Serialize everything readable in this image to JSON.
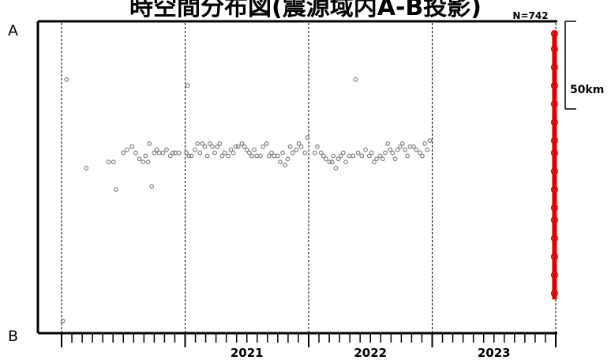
{
  "title": "時空間分布図(震源域内A-B投影)",
  "count_label": "N=742",
  "end_a": "A",
  "end_b": "B",
  "scale_label": "50km",
  "chart_data": {
    "type": "scatter",
    "title": "時空間分布図(震源域内A-B投影)",
    "xlabel": "",
    "ylabel": "",
    "x_ticks": [
      "2021",
      "2022",
      "2023"
    ],
    "xlim": [
      2020.0,
      2024.0
    ],
    "ylim": [
      0,
      1
    ],
    "y_axis_meaning": "position along A-B projection (1 = A, 0 = B)",
    "grid": "dashed vertical lines at year boundaries",
    "series": [
      {
        "color": "#808080",
        "points": [
          [
            2020.01,
            0.03
          ],
          [
            2020.04,
            0.82
          ],
          [
            2020.2,
            0.53
          ],
          [
            2020.38,
            0.55
          ],
          [
            2020.42,
            0.55
          ],
          [
            2020.44,
            0.46
          ],
          [
            2020.5,
            0.58
          ],
          [
            2020.53,
            0.59
          ],
          [
            2020.57,
            0.6
          ],
          [
            2020.6,
            0.58
          ],
          [
            2020.63,
            0.56
          ],
          [
            2020.66,
            0.55
          ],
          [
            2020.68,
            0.57
          ],
          [
            2020.7,
            0.55
          ],
          [
            2020.71,
            0.61
          ],
          [
            2020.73,
            0.47
          ],
          [
            2020.75,
            0.58
          ],
          [
            2020.77,
            0.59
          ],
          [
            2020.79,
            0.58
          ],
          [
            2020.82,
            0.58
          ],
          [
            2020.85,
            0.59
          ],
          [
            2020.88,
            0.57
          ],
          [
            2020.9,
            0.58
          ],
          [
            2020.92,
            0.58
          ],
          [
            2020.95,
            0.58
          ],
          [
            2021.02,
            0.8
          ],
          [
            2021.01,
            0.58
          ],
          [
            2021.03,
            0.57
          ],
          [
            2021.05,
            0.57
          ],
          [
            2021.08,
            0.59
          ],
          [
            2021.1,
            0.61
          ],
          [
            2021.12,
            0.58
          ],
          [
            2021.14,
            0.61
          ],
          [
            2021.16,
            0.6
          ],
          [
            2021.18,
            0.57
          ],
          [
            2021.2,
            0.61
          ],
          [
            2021.22,
            0.6
          ],
          [
            2021.24,
            0.58
          ],
          [
            2021.26,
            0.6
          ],
          [
            2021.28,
            0.61
          ],
          [
            2021.3,
            0.57
          ],
          [
            2021.32,
            0.58
          ],
          [
            2021.35,
            0.57
          ],
          [
            2021.37,
            0.59
          ],
          [
            2021.39,
            0.58
          ],
          [
            2021.41,
            0.6
          ],
          [
            2021.43,
            0.6
          ],
          [
            2021.46,
            0.61
          ],
          [
            2021.48,
            0.6
          ],
          [
            2021.5,
            0.59
          ],
          [
            2021.52,
            0.58
          ],
          [
            2021.54,
            0.57
          ],
          [
            2021.56,
            0.59
          ],
          [
            2021.58,
            0.57
          ],
          [
            2021.61,
            0.57
          ],
          [
            2021.63,
            0.6
          ],
          [
            2021.66,
            0.61
          ],
          [
            2021.68,
            0.57
          ],
          [
            2021.7,
            0.58
          ],
          [
            2021.72,
            0.57
          ],
          [
            2021.75,
            0.57
          ],
          [
            2021.77,
            0.55
          ],
          [
            2021.79,
            0.58
          ],
          [
            2021.81,
            0.54
          ],
          [
            2021.83,
            0.56
          ],
          [
            2021.85,
            0.6
          ],
          [
            2021.87,
            0.58
          ],
          [
            2021.9,
            0.59
          ],
          [
            2021.92,
            0.61
          ],
          [
            2021.94,
            0.6
          ],
          [
            2021.97,
            0.58
          ],
          [
            2021.99,
            0.63
          ],
          [
            2022.05,
            0.58
          ],
          [
            2022.07,
            0.6
          ],
          [
            2022.1,
            0.58
          ],
          [
            2022.12,
            0.57
          ],
          [
            2022.14,
            0.56
          ],
          [
            2022.17,
            0.55
          ],
          [
            2022.19,
            0.55
          ],
          [
            2022.2,
            0.57
          ],
          [
            2022.22,
            0.53
          ],
          [
            2022.24,
            0.56
          ],
          [
            2022.26,
            0.57
          ],
          [
            2022.28,
            0.58
          ],
          [
            2022.3,
            0.55
          ],
          [
            2022.33,
            0.57
          ],
          [
            2022.36,
            0.57
          ],
          [
            2022.38,
            0.82
          ],
          [
            2022.4,
            0.58
          ],
          [
            2022.43,
            0.57
          ],
          [
            2022.46,
            0.59
          ],
          [
            2022.49,
            0.57
          ],
          [
            2022.51,
            0.58
          ],
          [
            2022.53,
            0.55
          ],
          [
            2022.55,
            0.56
          ],
          [
            2022.58,
            0.57
          ],
          [
            2022.6,
            0.56
          ],
          [
            2022.62,
            0.58
          ],
          [
            2022.64,
            0.61
          ],
          [
            2022.66,
            0.59
          ],
          [
            2022.68,
            0.58
          ],
          [
            2022.7,
            0.56
          ],
          [
            2022.72,
            0.59
          ],
          [
            2022.74,
            0.6
          ],
          [
            2022.76,
            0.61
          ],
          [
            2022.78,
            0.59
          ],
          [
            2022.8,
            0.57
          ],
          [
            2022.82,
            0.6
          ],
          [
            2022.85,
            0.6
          ],
          [
            2022.87,
            0.59
          ],
          [
            2022.9,
            0.58
          ],
          [
            2022.92,
            0.57
          ],
          [
            2022.94,
            0.61
          ],
          [
            2022.96,
            0.59
          ],
          [
            2022.98,
            0.62
          ]
        ]
      },
      {
        "color": "#e00000",
        "points": [
          [
            2023.99,
            0.97
          ],
          [
            2023.99,
            0.92
          ],
          [
            2023.99,
            0.86
          ],
          [
            2023.99,
            0.8
          ],
          [
            2023.99,
            0.74
          ],
          [
            2023.99,
            0.68
          ],
          [
            2023.99,
            0.62
          ],
          [
            2023.99,
            0.58
          ],
          [
            2023.99,
            0.52
          ],
          [
            2023.99,
            0.46
          ],
          [
            2023.99,
            0.4
          ],
          [
            2023.99,
            0.36
          ],
          [
            2023.99,
            0.3
          ],
          [
            2023.99,
            0.24
          ],
          [
            2023.99,
            0.18
          ],
          [
            2023.99,
            0.12
          ]
        ]
      }
    ]
  }
}
